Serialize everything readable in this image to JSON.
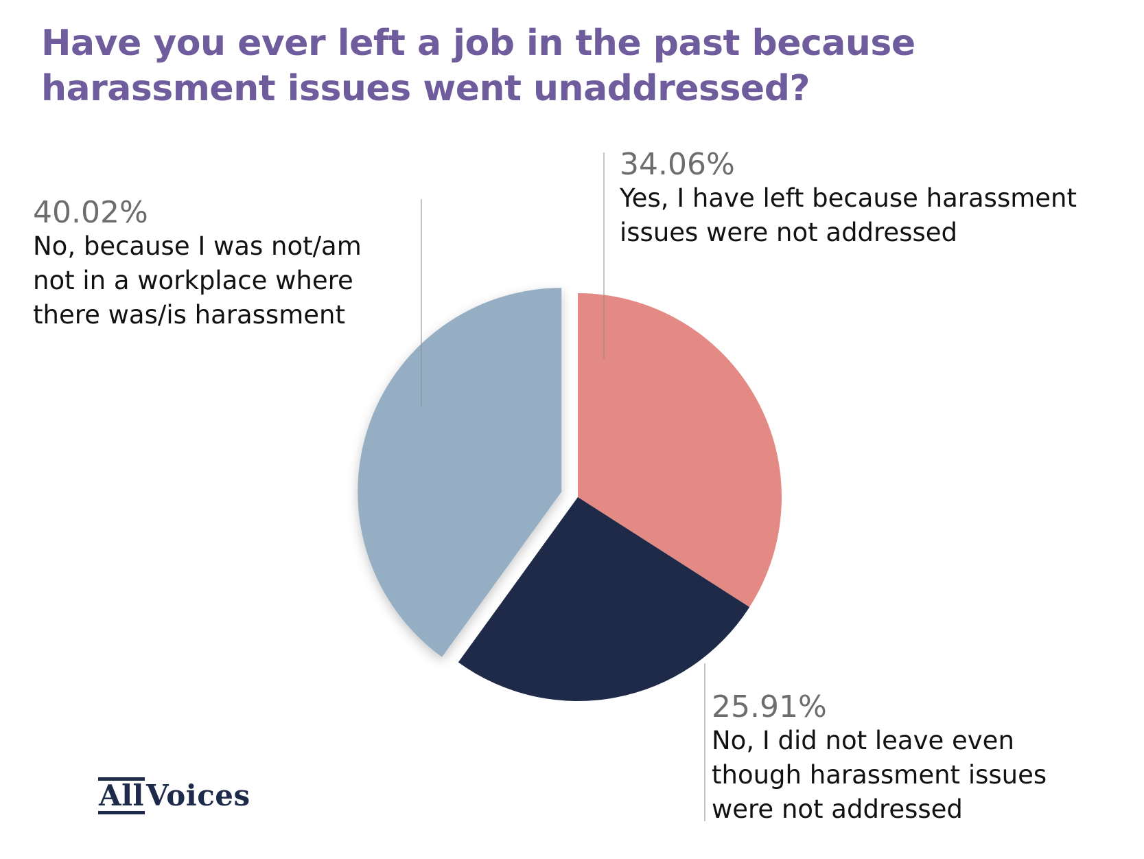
{
  "title_lines": [
    "Have you ever left a job in the past because",
    "harassment issues went unaddressed?"
  ],
  "logo": {
    "part1": "All",
    "part2": "Voices",
    "color": "#1d2a4a"
  },
  "chart_data": {
    "type": "pie",
    "title": "Have you ever left a job in the past because harassment issues went unaddressed?",
    "start_angle_deg": 0,
    "direction": "clockwise",
    "slices": [
      {
        "label": "Yes, I have left because harassment issues were not addressed",
        "label_lines": [
          "Yes, I have left because harassment",
          "issues were not addressed"
        ],
        "value": 34.06,
        "display": "34.06%",
        "color": "#e38a84"
      },
      {
        "label": "No, I did not leave even though harassment issues were not addressed",
        "label_lines": [
          "No, I did not leave even",
          "though harassment issues",
          "were not addressed"
        ],
        "value": 25.91,
        "display": "25.91%",
        "color": "#1e2a48"
      },
      {
        "label": "No, because I was not/am not in a workplace where there was/is harassment",
        "label_lines": [
          "No, because I was not/am",
          "not in a workplace where",
          "there was/is harassment"
        ],
        "value": 40.02,
        "display": "40.02%",
        "color": "#95aec3",
        "exploded": true
      }
    ]
  }
}
